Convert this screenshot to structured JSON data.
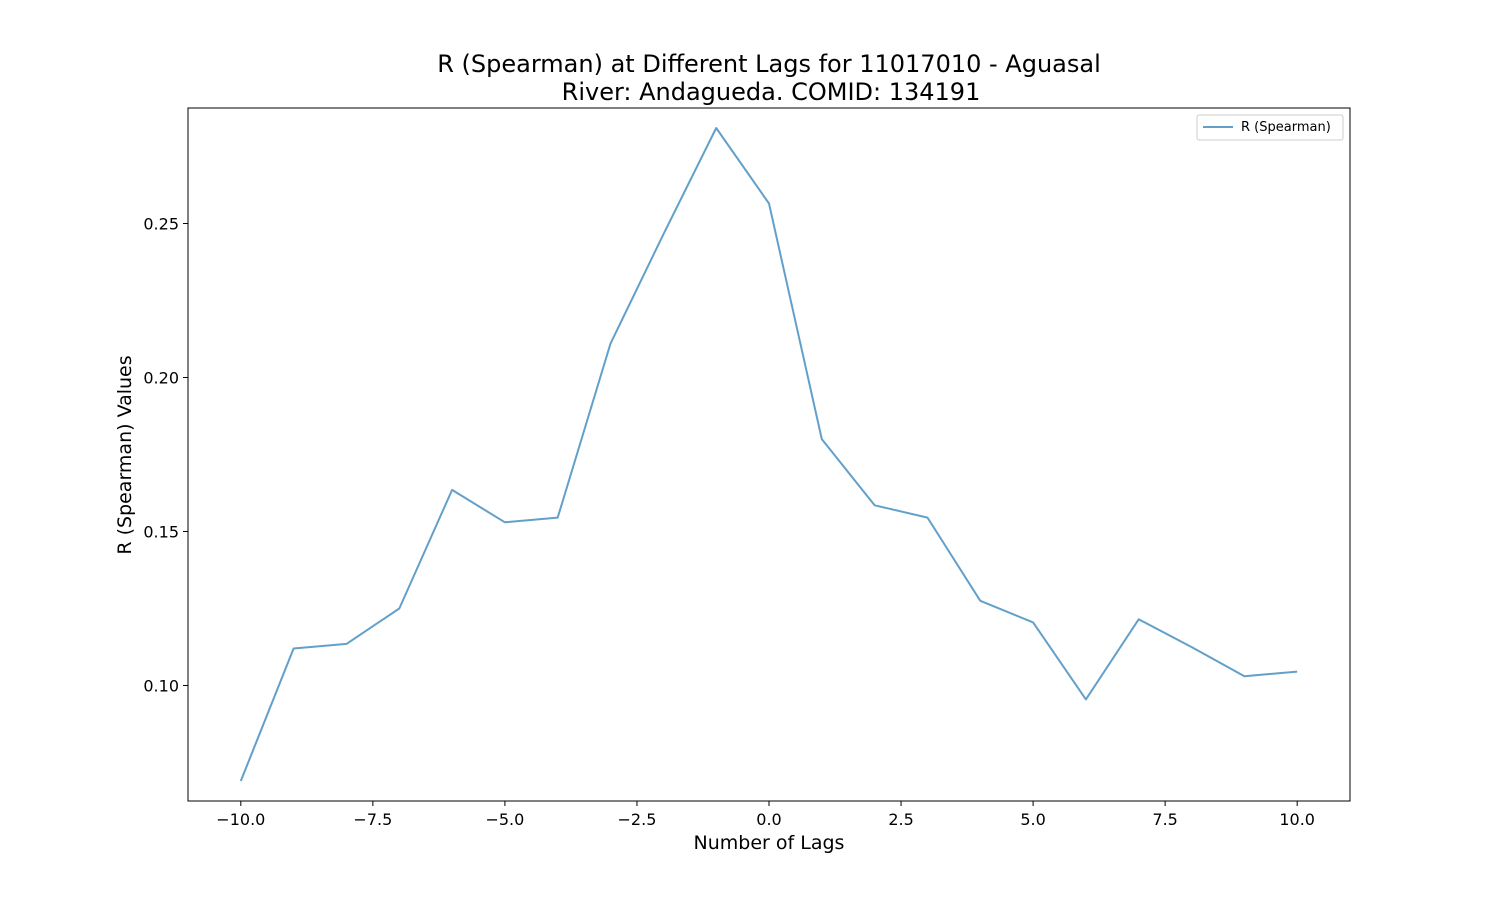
{
  "chart_data": {
    "type": "line",
    "title": "R (Spearman) at Different Lags for 11017010 - Aguasal",
    "subtitle": "River: Andagueda. COMID: 134191",
    "xlabel": "Number of Lags",
    "ylabel": "R (Spearman) Values",
    "xlim": [
      -11,
      11
    ],
    "ylim": [
      0.0625,
      0.2875
    ],
    "x_ticks": [
      -10.0,
      -7.5,
      -5.0,
      -2.5,
      0.0,
      2.5,
      5.0,
      7.5,
      10.0
    ],
    "x_tick_labels": [
      "−10.0",
      "−7.5",
      "−5.0",
      "−2.5",
      "0.0",
      "2.5",
      "5.0",
      "7.5",
      "10.0"
    ],
    "y_ticks": [
      0.1,
      0.15,
      0.2,
      0.25
    ],
    "y_tick_labels": [
      "0.10",
      "0.15",
      "0.20",
      "0.25"
    ],
    "grid": false,
    "legend": "top-right",
    "series": [
      {
        "name": "R (Spearman)",
        "color": "#1f77b4",
        "x": [
          -10,
          -9,
          -8,
          -7,
          -6,
          -5,
          -4,
          -3,
          -2,
          -1,
          0,
          1,
          2,
          3,
          4,
          5,
          6,
          7,
          8,
          9,
          10
        ],
        "values": [
          0.069,
          0.112,
          0.1135,
          0.125,
          0.1635,
          0.153,
          0.1545,
          0.211,
          0.2465,
          0.281,
          0.2565,
          0.18,
          0.1585,
          0.1545,
          0.1275,
          0.1205,
          0.0955,
          0.1215,
          0.1125,
          0.103,
          0.1045
        ]
      }
    ]
  }
}
